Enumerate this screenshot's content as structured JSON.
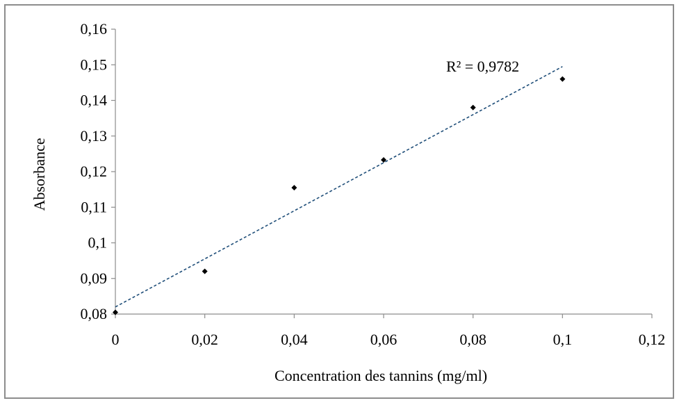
{
  "chart_data": {
    "type": "scatter",
    "title": "",
    "xlabel": "Concentration des tannins (mg/ml)",
    "ylabel": "Absorbance",
    "xlim": [
      0,
      0.12
    ],
    "ylim": [
      0.08,
      0.16
    ],
    "x_ticks": [
      "0",
      "0,02",
      "0,04",
      "0,06",
      "0,08",
      "0,1",
      "0,12"
    ],
    "y_ticks": [
      "0,08",
      "0,09",
      "0,1",
      "0,11",
      "0,12",
      "0,13",
      "0,14",
      "0,15",
      "0,16"
    ],
    "grid": false,
    "legend": "none",
    "series": [
      {
        "x": [
          0,
          0.02,
          0.04,
          0.06,
          0.08,
          0.1
        ],
        "y": [
          0.0805,
          0.092,
          0.1155,
          0.1233,
          0.138,
          0.146
        ],
        "marker": "diamond",
        "color": "#000000"
      }
    ],
    "trendline": {
      "type": "linear",
      "x": [
        0,
        0.1
      ],
      "y": [
        0.082,
        0.1495
      ],
      "style": "dashed",
      "color": "#1f4e79",
      "annotation": "R² = 0,9782"
    }
  }
}
